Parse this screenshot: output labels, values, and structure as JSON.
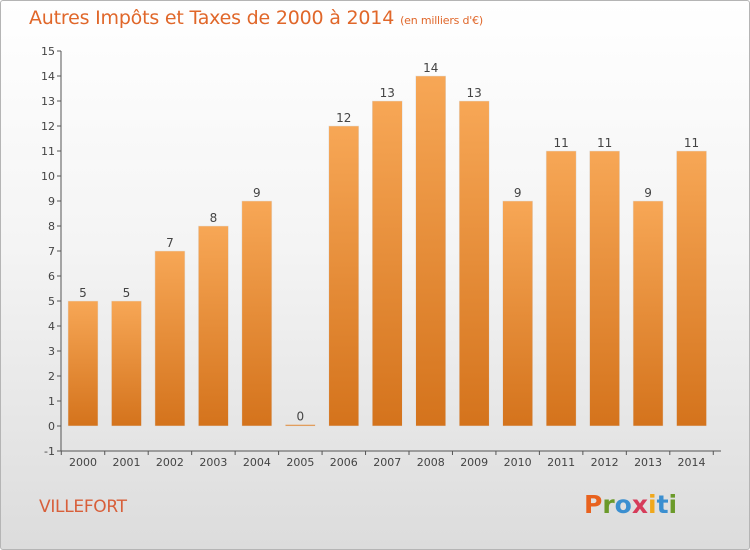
{
  "chart_data": {
    "type": "bar",
    "title": "Autres Impôts et Taxes de 2000 à 2014",
    "subtitle": "(en milliers d'€)",
    "categories": [
      "2000",
      "2001",
      "2002",
      "2003",
      "2004",
      "2005",
      "2006",
      "2007",
      "2008",
      "2009",
      "2010",
      "2011",
      "2012",
      "2013",
      "2014"
    ],
    "values": [
      5,
      5,
      7,
      8,
      9,
      0,
      12,
      13,
      14,
      13,
      9,
      11,
      11,
      9,
      11
    ],
    "data_labels": [
      "5",
      "5",
      "7",
      "8",
      "9",
      "0",
      "12",
      "13",
      "14",
      "13",
      "9",
      "11",
      "11",
      "9",
      "11"
    ],
    "ylim": [
      -1,
      15
    ],
    "yticks": [
      -1,
      0,
      1,
      2,
      3,
      4,
      5,
      6,
      7,
      8,
      9,
      10,
      11,
      12,
      13,
      14,
      15
    ],
    "xlabel": "",
    "ylabel": "",
    "grid": false,
    "colors": {
      "bar_top": "#f7a756",
      "bar_bottom": "#d4731c",
      "axis": "#555555",
      "label": "#444444"
    }
  },
  "footer": {
    "commune": "VILLEFORT",
    "brand_letters": [
      "P",
      "r",
      "o",
      "x",
      "i",
      "t",
      "i"
    ],
    "brand_colors": [
      "#e8621e",
      "#6b9a2a",
      "#3b8fd0",
      "#d63c5a",
      "#f0a81c",
      "#3b8fd0",
      "#6b9a2a"
    ]
  }
}
